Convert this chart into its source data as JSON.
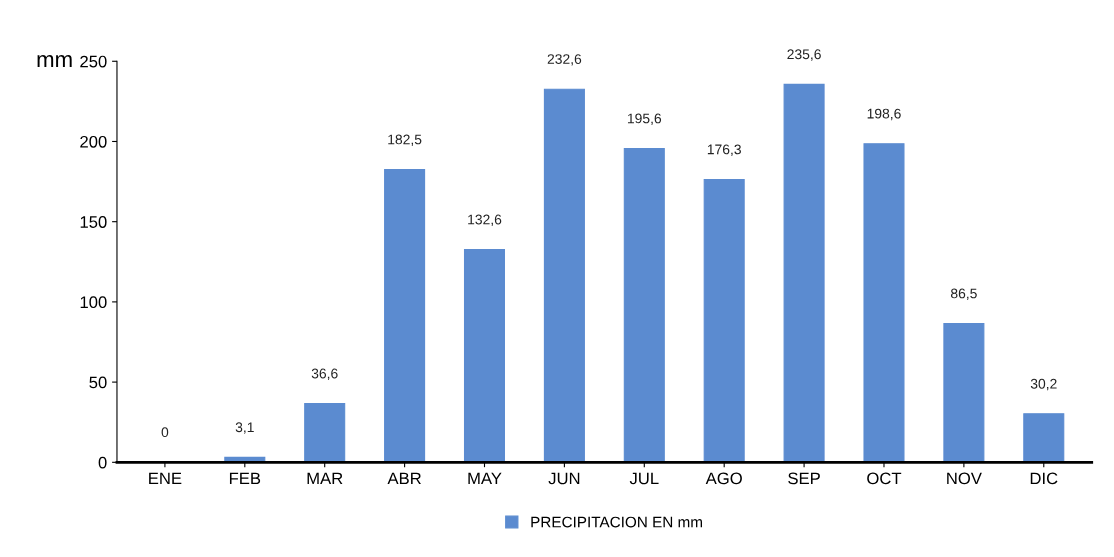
{
  "chart_data": {
    "type": "bar",
    "ylabel": "mm",
    "categories": [
      "ENE",
      "FEB",
      "MAR",
      "ABR",
      "MAY",
      "JUN",
      "JUL",
      "AGO",
      "SEP",
      "OCT",
      "NOV",
      "DIC"
    ],
    "series": [
      {
        "name": "PRECIPITACION EN mm",
        "color": "#5b8bd0",
        "values": [
          0,
          3.1,
          36.6,
          182.5,
          132.6,
          232.6,
          195.6,
          176.3,
          235.6,
          198.6,
          86.5,
          30.2
        ],
        "value_labels": [
          "0",
          "3,1",
          "36,6",
          "182,5",
          "132,6",
          "232,6",
          "195,6",
          "176,3",
          "235,6",
          "198,6",
          "86,5",
          "30,2"
        ]
      }
    ],
    "ylim": [
      0,
      250
    ],
    "yticks": [
      0,
      50,
      100,
      150,
      200,
      250
    ],
    "grid": false,
    "legend": "bottom"
  }
}
